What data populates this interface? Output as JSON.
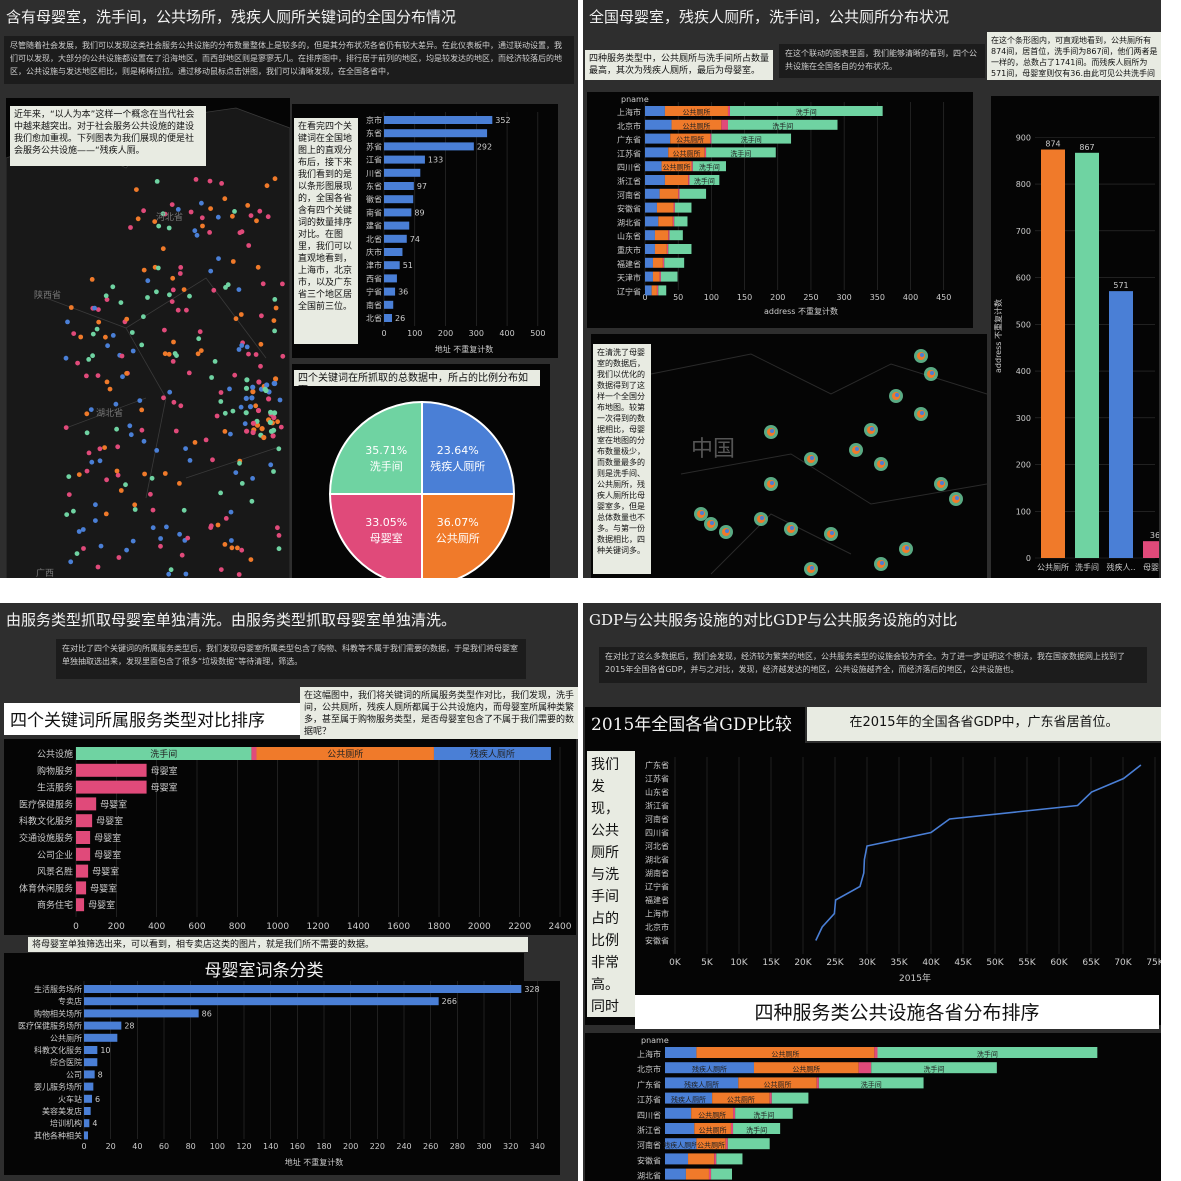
{
  "colors": {
    "blue": "#4a7fd6",
    "orange": "#f07a2a",
    "green": "#6fd3a2",
    "pink": "#e04a7a",
    "panel": "#050505",
    "bg": "#2e2e2e"
  },
  "q1": {
    "title": "含有母婴室，洗手间，公共场所，残疾人厕所关键词的全国分布情况",
    "intro": "尽管随着社会发展，我们可以发现这类社会服务公共设施的分布数量整体上是较多的，但是其分布状况各省仍有较大差异。在此仪表板中，通过联动设置，我们可以发现，大部分的公共设施都设置在了沿海地区，而西部地区则是寥寥无几。在排序图中，排行居于前列的地区，均是较发达的地区，而经济较落后的地区，公共设施与发达地区相比，则是稀稀拉拉。通过移动鼠标点击饼图，我们可以清晰发现，在全国各省中，",
    "map_note": "近年来，“以人为本”这样一个概念在当代社会中越来越突出。对于社会服务公共设施的建设我们愈加重视。下列图表为我们展现的便是社会服务公共设施——“残疾人厕。",
    "map_labels": [
      "陕西省",
      "河北省",
      "湖北省",
      "广西"
    ],
    "bar_note": "在看完四个关键词在全国地图上的直观分布后，接下来我们看到的是以条形图展现的，全国各省含有四个关键词的数量排序对比。在图里，我们可以直观地看到，上海市，北京市，以及广东省三个地区居全国前三位。",
    "pie_note": "四个关键词在所抓取的总数据中，所占的比例分布如下。"
  },
  "chart_data": [
    {
      "id": "q1-province-bar",
      "type": "bar",
      "orientation": "horizontal",
      "categories": [
        "京市",
        "东省",
        "苏省",
        "江省",
        "川省",
        "东省",
        "徽省",
        "南省",
        "建省",
        "北省",
        "庆市",
        "津市",
        "西省",
        "宁省",
        "南省",
        "北省"
      ],
      "values": [
        352,
        335,
        292,
        133,
        118,
        97,
        95,
        89,
        82,
        74,
        60,
        51,
        42,
        36,
        30,
        26
      ],
      "value_labels": [
        "352",
        "",
        "292",
        "133",
        "",
        "97",
        "",
        "89",
        "",
        "74",
        "",
        "51",
        "",
        "36",
        "",
        "26"
      ],
      "xticks": [
        "0",
        "100",
        "200",
        "300",
        "400",
        "500"
      ],
      "xlim": [
        0,
        520
      ],
      "xlabel": "地址 不重复计数"
    },
    {
      "id": "q1-pie",
      "type": "pie",
      "slices": [
        {
          "label": "残疾人厕所",
          "value": 23.64,
          "text": "23.64%",
          "color": "#4a7fd6"
        },
        {
          "label": "公共厕所",
          "value": 36.07,
          "text": "36.07%",
          "color": "#f07a2a"
        },
        {
          "label": "母婴室",
          "value": 33.05,
          "text": "33.05%",
          "color": "#e04a7a"
        },
        {
          "label": "洗手间",
          "value": 35.71,
          "text": "35.71%",
          "color": "#6fd3a2"
        }
      ]
    },
    {
      "id": "q2-stacked",
      "type": "bar",
      "orientation": "horizontal",
      "stacked": true,
      "header": "pname",
      "categories": [
        "上海市",
        "北京市",
        "广东省",
        "江苏省",
        "四川省",
        "浙江省",
        "河南省",
        "安徽省",
        "湖北省",
        "山东省",
        "重庆市",
        "福建省",
        "天津市",
        "辽宁省"
      ],
      "series": [
        {
          "name": "残疾人厕所",
          "color": "#4a7fd6",
          "values": [
            30,
            40,
            38,
            35,
            25,
            30,
            22,
            18,
            20,
            15,
            15,
            12,
            12,
            10
          ]
        },
        {
          "name": "公共厕所",
          "color": "#f07a2a",
          "values": [
            95,
            75,
            60,
            55,
            45,
            35,
            28,
            25,
            22,
            20,
            18,
            15,
            10,
            8
          ]
        },
        {
          "name": "母婴室",
          "color": "#e04a7a",
          "values": [
            3,
            10,
            2,
            2,
            2,
            2,
            2,
            2,
            2,
            2,
            2,
            2,
            2,
            2
          ]
        },
        {
          "name": "洗手间",
          "color": "#6fd3a2",
          "values": [
            230,
            165,
            120,
            105,
            50,
            45,
            40,
            25,
            20,
            20,
            35,
            30,
            25,
            12
          ]
        }
      ],
      "seg_labels": [
        [
          "",
          "公共厕所",
          "洗手间"
        ],
        [
          "残疾人厕所",
          "公共厕所",
          "洗手间"
        ],
        [
          "残疾人厕所",
          "公共厕所",
          "洗手间"
        ],
        [
          "残疾人厕所",
          "公共厕所",
          "洗手间"
        ],
        [
          "",
          "公共厕所",
          "洗手间"
        ],
        [
          "",
          "公共厕所",
          "洗手间"
        ],
        [
          "",
          "公共厕所",
          ""
        ]
      ],
      "xticks": [
        "0",
        "50",
        "100",
        "150",
        "200",
        "250",
        "300",
        "350",
        "400",
        "450"
      ],
      "xlim": [
        0,
        470
      ],
      "xlabel": "address 不重复计数"
    },
    {
      "id": "q2-vbar",
      "type": "bar",
      "orientation": "vertical",
      "categories": [
        "公共厕所",
        "洗手间",
        "残疾人厕所",
        "母婴室"
      ],
      "category_labels": [
        "公共厕所",
        "洗手间",
        "残疾人..",
        "母婴室"
      ],
      "values": [
        874,
        867,
        571,
        36
      ],
      "colors": [
        "#f07a2a",
        "#6fd3a2",
        "#4a7fd6",
        "#e04a7a"
      ],
      "yticks": [
        "0",
        "100",
        "200",
        "300",
        "400",
        "500",
        "600",
        "700",
        "800",
        "900"
      ],
      "ylim": [
        0,
        950
      ],
      "ylabel": "address 不重复计数"
    },
    {
      "id": "q3-service-type",
      "type": "bar",
      "orientation": "horizontal",
      "stacked": true,
      "categories": [
        "公共设施",
        "购物服务",
        "生活服务",
        "医疗保健服务",
        "科教文化服务",
        "交通设施服务",
        "公司企业",
        "风景名胜",
        "体育休闲服务",
        "商务住宅"
      ],
      "series": [
        {
          "name": "洗手间",
          "color": "#6fd3a2",
          "values": [
            870,
            0,
            0,
            0,
            0,
            0,
            0,
            0,
            0,
            0
          ]
        },
        {
          "name": "母婴室",
          "color": "#e04a7a",
          "values": [
            25,
            350,
            350,
            100,
            80,
            70,
            70,
            60,
            50,
            40
          ]
        },
        {
          "name": "公共厕所",
          "color": "#f07a2a",
          "values": [
            880,
            0,
            0,
            0,
            0,
            0,
            0,
            0,
            0,
            0
          ]
        },
        {
          "name": "残疾人厕所",
          "color": "#4a7fd6",
          "values": [
            580,
            0,
            0,
            0,
            0,
            0,
            0,
            0,
            0,
            0
          ]
        }
      ],
      "xticks": [
        "0",
        "200",
        "400",
        "600",
        "800",
        "1000",
        "1200",
        "1400",
        "1600",
        "1800",
        "2000",
        "2200",
        "2400"
      ],
      "xlim": [
        0,
        2400
      ]
    },
    {
      "id": "q3-muying",
      "type": "bar",
      "orientation": "horizontal",
      "categories": [
        "生活服务场所",
        "专卖店",
        "购物相关场所",
        "医疗保健服务场所",
        "公共厕所",
        "科教文化服务",
        "综合医院",
        "公司",
        "婴儿服务场所",
        "火车站",
        "美容美发店",
        "培训机构",
        "其他各种相关"
      ],
      "values": [
        328,
        266,
        86,
        28,
        25,
        10,
        10,
        8,
        7,
        6,
        5,
        4,
        3
      ],
      "value_labels": [
        "328",
        "266",
        "86",
        "28",
        "",
        "10",
        "",
        "8",
        "",
        "6",
        "",
        "4",
        ""
      ],
      "xticks": [
        "0",
        "20",
        "40",
        "60",
        "80",
        "100",
        "120",
        "140",
        "160",
        "180",
        "200",
        "220",
        "240",
        "260",
        "280",
        "300",
        "320",
        "340"
      ],
      "xlim": [
        0,
        345
      ],
      "xlabel": "地址 不重复计数"
    },
    {
      "id": "q4-gdp-line",
      "type": "line",
      "title": "2015年全国各省GDP比较",
      "y_categories": [
        "广东省",
        "江苏省",
        "山东省",
        "浙江省",
        "河南省",
        "四川省",
        "河北省",
        "湖北省",
        "湖南省",
        "辽宁省",
        "福建省",
        "上海市",
        "北京市",
        "安徽省"
      ],
      "x": [
        72800,
        70100,
        65100,
        62900,
        42900,
        40000,
        30000,
        29600,
        29500,
        28900,
        25100,
        24900,
        23000,
        22000
      ],
      "xticks": [
        "0K",
        "5K",
        "10K",
        "15K",
        "20K",
        "25K",
        "30K",
        "35K",
        "40K",
        "45K",
        "50K",
        "55K",
        "60K",
        "65K",
        "70K",
        "75K"
      ],
      "xlim": [
        0,
        75000
      ],
      "xlabel": "2015年"
    },
    {
      "id": "q4-stacked",
      "type": "bar",
      "orientation": "horizontal",
      "stacked": true,
      "header": "pname",
      "categories": [
        "上海市",
        "北京市",
        "广东省",
        "江苏省",
        "四川省",
        "浙江省",
        "河南省",
        "安徽省",
        "湖北省"
      ],
      "series": [
        {
          "name": "残疾人厕所",
          "color": "#4a7fd6",
          "values": [
            30,
            85,
            70,
            45,
            25,
            28,
            30,
            22,
            20
          ]
        },
        {
          "name": "公共厕所",
          "color": "#f07a2a",
          "values": [
            170,
            100,
            75,
            55,
            40,
            35,
            28,
            25,
            22
          ]
        },
        {
          "name": "母婴室",
          "color": "#e04a7a",
          "values": [
            3,
            12,
            2,
            2,
            2,
            2,
            2,
            2,
            2
          ]
        },
        {
          "name": "洗手间",
          "color": "#6fd3a2",
          "values": [
            210,
            120,
            100,
            35,
            55,
            45,
            40,
            25,
            20
          ]
        }
      ],
      "seg_labels": [
        [
          "",
          "公共厕所",
          "洗手间"
        ],
        [
          "残疾人厕所",
          "公共厕所",
          "洗手间"
        ],
        [
          "残疾人厕所",
          "公共厕所",
          "洗手间"
        ],
        [
          "残疾人厕所",
          "公共厕所",
          ""
        ],
        [
          "",
          "公共厕所",
          "洗手间"
        ],
        [
          "",
          "公共厕所",
          "洗手间"
        ],
        [
          "残疾人厕所",
          "公共厕所",
          ""
        ]
      ],
      "xlim": [
        0,
        470
      ]
    }
  ],
  "q2": {
    "title": "全国母婴室，残疾人厕所，洗手间，公共厕所分布状况",
    "note1": "四种服务类型中，公共厕所与洗手间所占数量最高，其次为残疾人厕所，最后为母婴室。",
    "note2": "在这个联动的图表里面，我们能够清晰的看到，四个公共设施在全国各自的分布状况。",
    "note3": "在这个条形图内，可直观地看到，公共厕所有874间，居首位，洗手间为867间，他们两者是一样的，总数占了1741间。而残疾人厕所为571间，母婴室则仅有36.由此可见公共洗手间（厕。",
    "map_note": "在清洗了母婴室的数据后，我们以优化的数据得到了这样一个全国分布地图。较第一次得到的数据相比，母婴室在地图的分布数量极少，而数量最多的则是洗手间、公共厕所，残疾人厕所比母婴室多，但是总体数量也不多。与第一份数据相比，四种关键词多。",
    "map_label": "中国"
  },
  "q3": {
    "title": "由服务类型抓取母婴室单独清洗。由服务类型抓取母婴室单独清洗。",
    "intro": "在对比了四个关键词的所属服务类型后，我们发现母婴室所属类型包含了购物、科教等不属于我们需要的数据，于是我们将母婴室单独抽取选出来，发现里面包含了很多“垃圾数据”等待清理，筛选。",
    "chart_title": "四个关键词所属服务类型对比排序",
    "bubble": "在这幅图中，我们将关键词的所属服务类型作对比，我们发现，洗手间，公共厕所，残疾人厕所都属于公共设施内，而母婴室所属种类繁多，甚至属于购物服务类型，是否母婴室包含了不属于我们需要的数据呢？",
    "caption": "将母婴室单独筛选出来，可以看到，相专卖店这类的图片，就是我们所不需要的数据。",
    "chart2_title": "母婴室词条分类"
  },
  "q4": {
    "title": "GDP与公共服务设施的对比GDP与公共服务设施的对比",
    "intro": "在对比了这么多数据后，我们会发现，经济较为繁荣的地区，公共服务类型的设施会较为齐全。为了进一步证明这个想法，我在国家数据网上找到了2015年全国各省GDP，并与之对比，发现，经济越发达的地区，公共设施越齐全，而经济落后的地区，公共设施也。",
    "gdp_title": "2015年全国各省GDP比较",
    "gdp_note": "在2015年的全国各省GDP中，广东省居首位。",
    "side_note": "我们发现，公共厕所与洗手间占的比例非常高。同时上海市，北京市，广东省三。",
    "rank_title": "四种服务类公共设施各省分布排序"
  }
}
